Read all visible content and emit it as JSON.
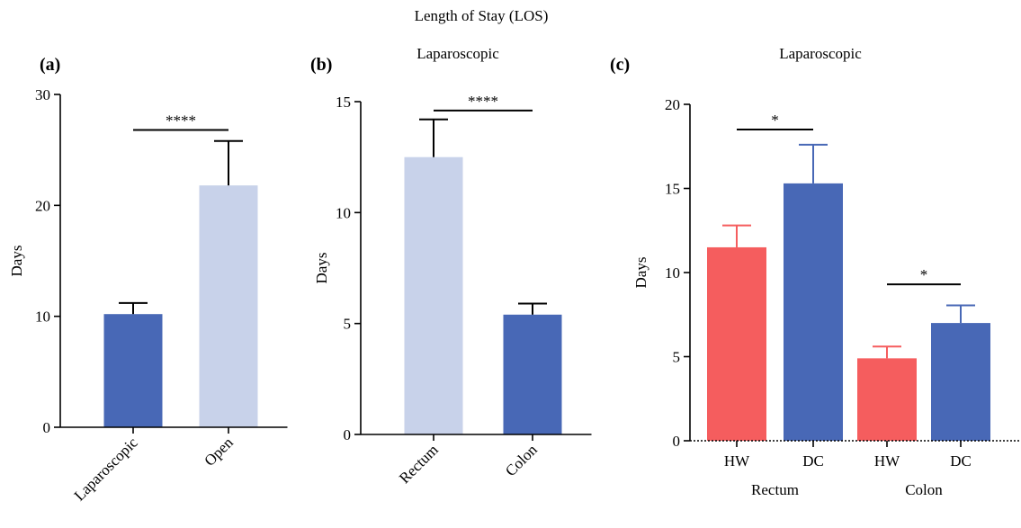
{
  "figure_title": "Length of Stay (LOS)",
  "colors": {
    "dark_blue": "#4868b6",
    "light_blue": "#c8d2ea",
    "red": "#f55d5e",
    "axis": "#000000"
  },
  "panels": [
    {
      "label": "(a)",
      "subtitle": ""
    },
    {
      "label": "(b)",
      "subtitle": "Laparoscopic"
    },
    {
      "label": "(c)",
      "subtitle": "Laparoscopic"
    }
  ],
  "chart_data": [
    {
      "type": "bar",
      "title": "",
      "ylabel": "Days",
      "ylim": [
        0,
        30
      ],
      "yticks": [
        0,
        10,
        20,
        30
      ],
      "categories": [
        "Laparoscopic",
        "Open"
      ],
      "values": [
        10.2,
        21.8
      ],
      "errors": [
        1.0,
        4.0
      ],
      "bar_colors": [
        "#4868b6",
        "#c8d2ea"
      ],
      "error_colors": [
        "#000000",
        "#000000"
      ],
      "x_labels_rotated": true,
      "significance": [
        {
          "from": 0,
          "to": 1,
          "y": 26.8,
          "text": "****"
        }
      ]
    },
    {
      "type": "bar",
      "title": "Laparoscopic",
      "ylabel": "Days",
      "ylim": [
        0,
        15
      ],
      "yticks": [
        0,
        5,
        10,
        15
      ],
      "categories": [
        "Rectum",
        "Colon"
      ],
      "values": [
        12.5,
        5.4
      ],
      "errors": [
        1.7,
        0.5
      ],
      "bar_colors": [
        "#c8d2ea",
        "#4868b6"
      ],
      "error_colors": [
        "#000000",
        "#000000"
      ],
      "x_labels_rotated": true,
      "significance": [
        {
          "from": 0,
          "to": 1,
          "y": 14.6,
          "text": "****"
        }
      ]
    },
    {
      "type": "bar",
      "title": "Laparoscopic",
      "ylabel": "Days",
      "ylim": [
        0,
        20
      ],
      "yticks": [
        0,
        5,
        10,
        15,
        20
      ],
      "categories": [
        "HW",
        "DC",
        "HW",
        "DC"
      ],
      "groups": [
        {
          "name": "Rectum",
          "indices": [
            0,
            1
          ]
        },
        {
          "name": "Colon",
          "indices": [
            2,
            3
          ]
        }
      ],
      "values": [
        11.5,
        15.3,
        4.9,
        7.0
      ],
      "errors": [
        1.3,
        2.3,
        0.7,
        1.05
      ],
      "bar_colors": [
        "#f55d5e",
        "#4868b6",
        "#f55d5e",
        "#4868b6"
      ],
      "error_colors": [
        "#f55d5e",
        "#4868b6",
        "#f55d5e",
        "#4868b6"
      ],
      "x_labels_rotated": false,
      "significance": [
        {
          "from": 0,
          "to": 1,
          "y": 18.5,
          "text": "*"
        },
        {
          "from": 2,
          "to": 3,
          "y": 9.3,
          "text": "*"
        }
      ]
    }
  ]
}
